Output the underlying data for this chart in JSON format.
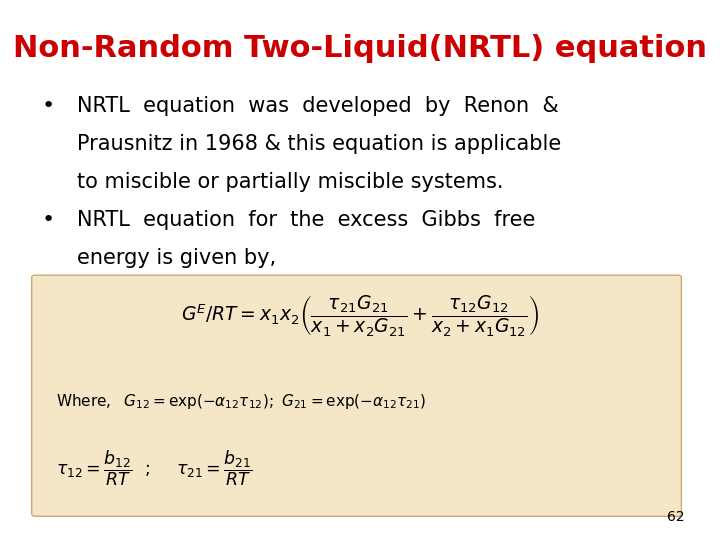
{
  "title": "Non-Random Two-Liquid(NRTL) equation",
  "title_color": "#cc0000",
  "title_fontsize": 22,
  "bullet1_line1": "NRTL  equation  was  developed  by  Renon  &",
  "bullet1_line2": "Prausnitz in 1968 & this equation is applicable",
  "bullet1_line3": "to miscible or partially miscible systems.",
  "bullet2_line1": "NRTL  equation  for  the  excess  Gibbs  free",
  "bullet2_line2": "energy is given by,",
  "body_fontsize": 15,
  "box_color": "#f5e6c8",
  "box_edge_color": "#c8a96e",
  "page_number": "62",
  "background_color": "#ffffff",
  "text_color": "#000000",
  "equation_main": "$G^E / RT = x_1 x_2 \\left( \\dfrac{\\tau_{21}G_{21}}{x_1 + x_2 G_{21}} + \\dfrac{\\tau_{12}G_{12}}{x_2 + x_1 G_{12}} \\right)$",
  "equation_where": "$\\mathrm{Where,}\\ \\ G_{12} = \\exp(-\\alpha_{12}\\tau_{12});\\ G_{21} = \\exp(-\\alpha_{12}\\tau_{21})$",
  "equation_tau": "$\\tau_{12} = \\dfrac{b_{12}}{RT} \\ \\ ;\\ \\ \\ \\ \\tau_{21} = \\dfrac{b_{21}}{RT}$"
}
